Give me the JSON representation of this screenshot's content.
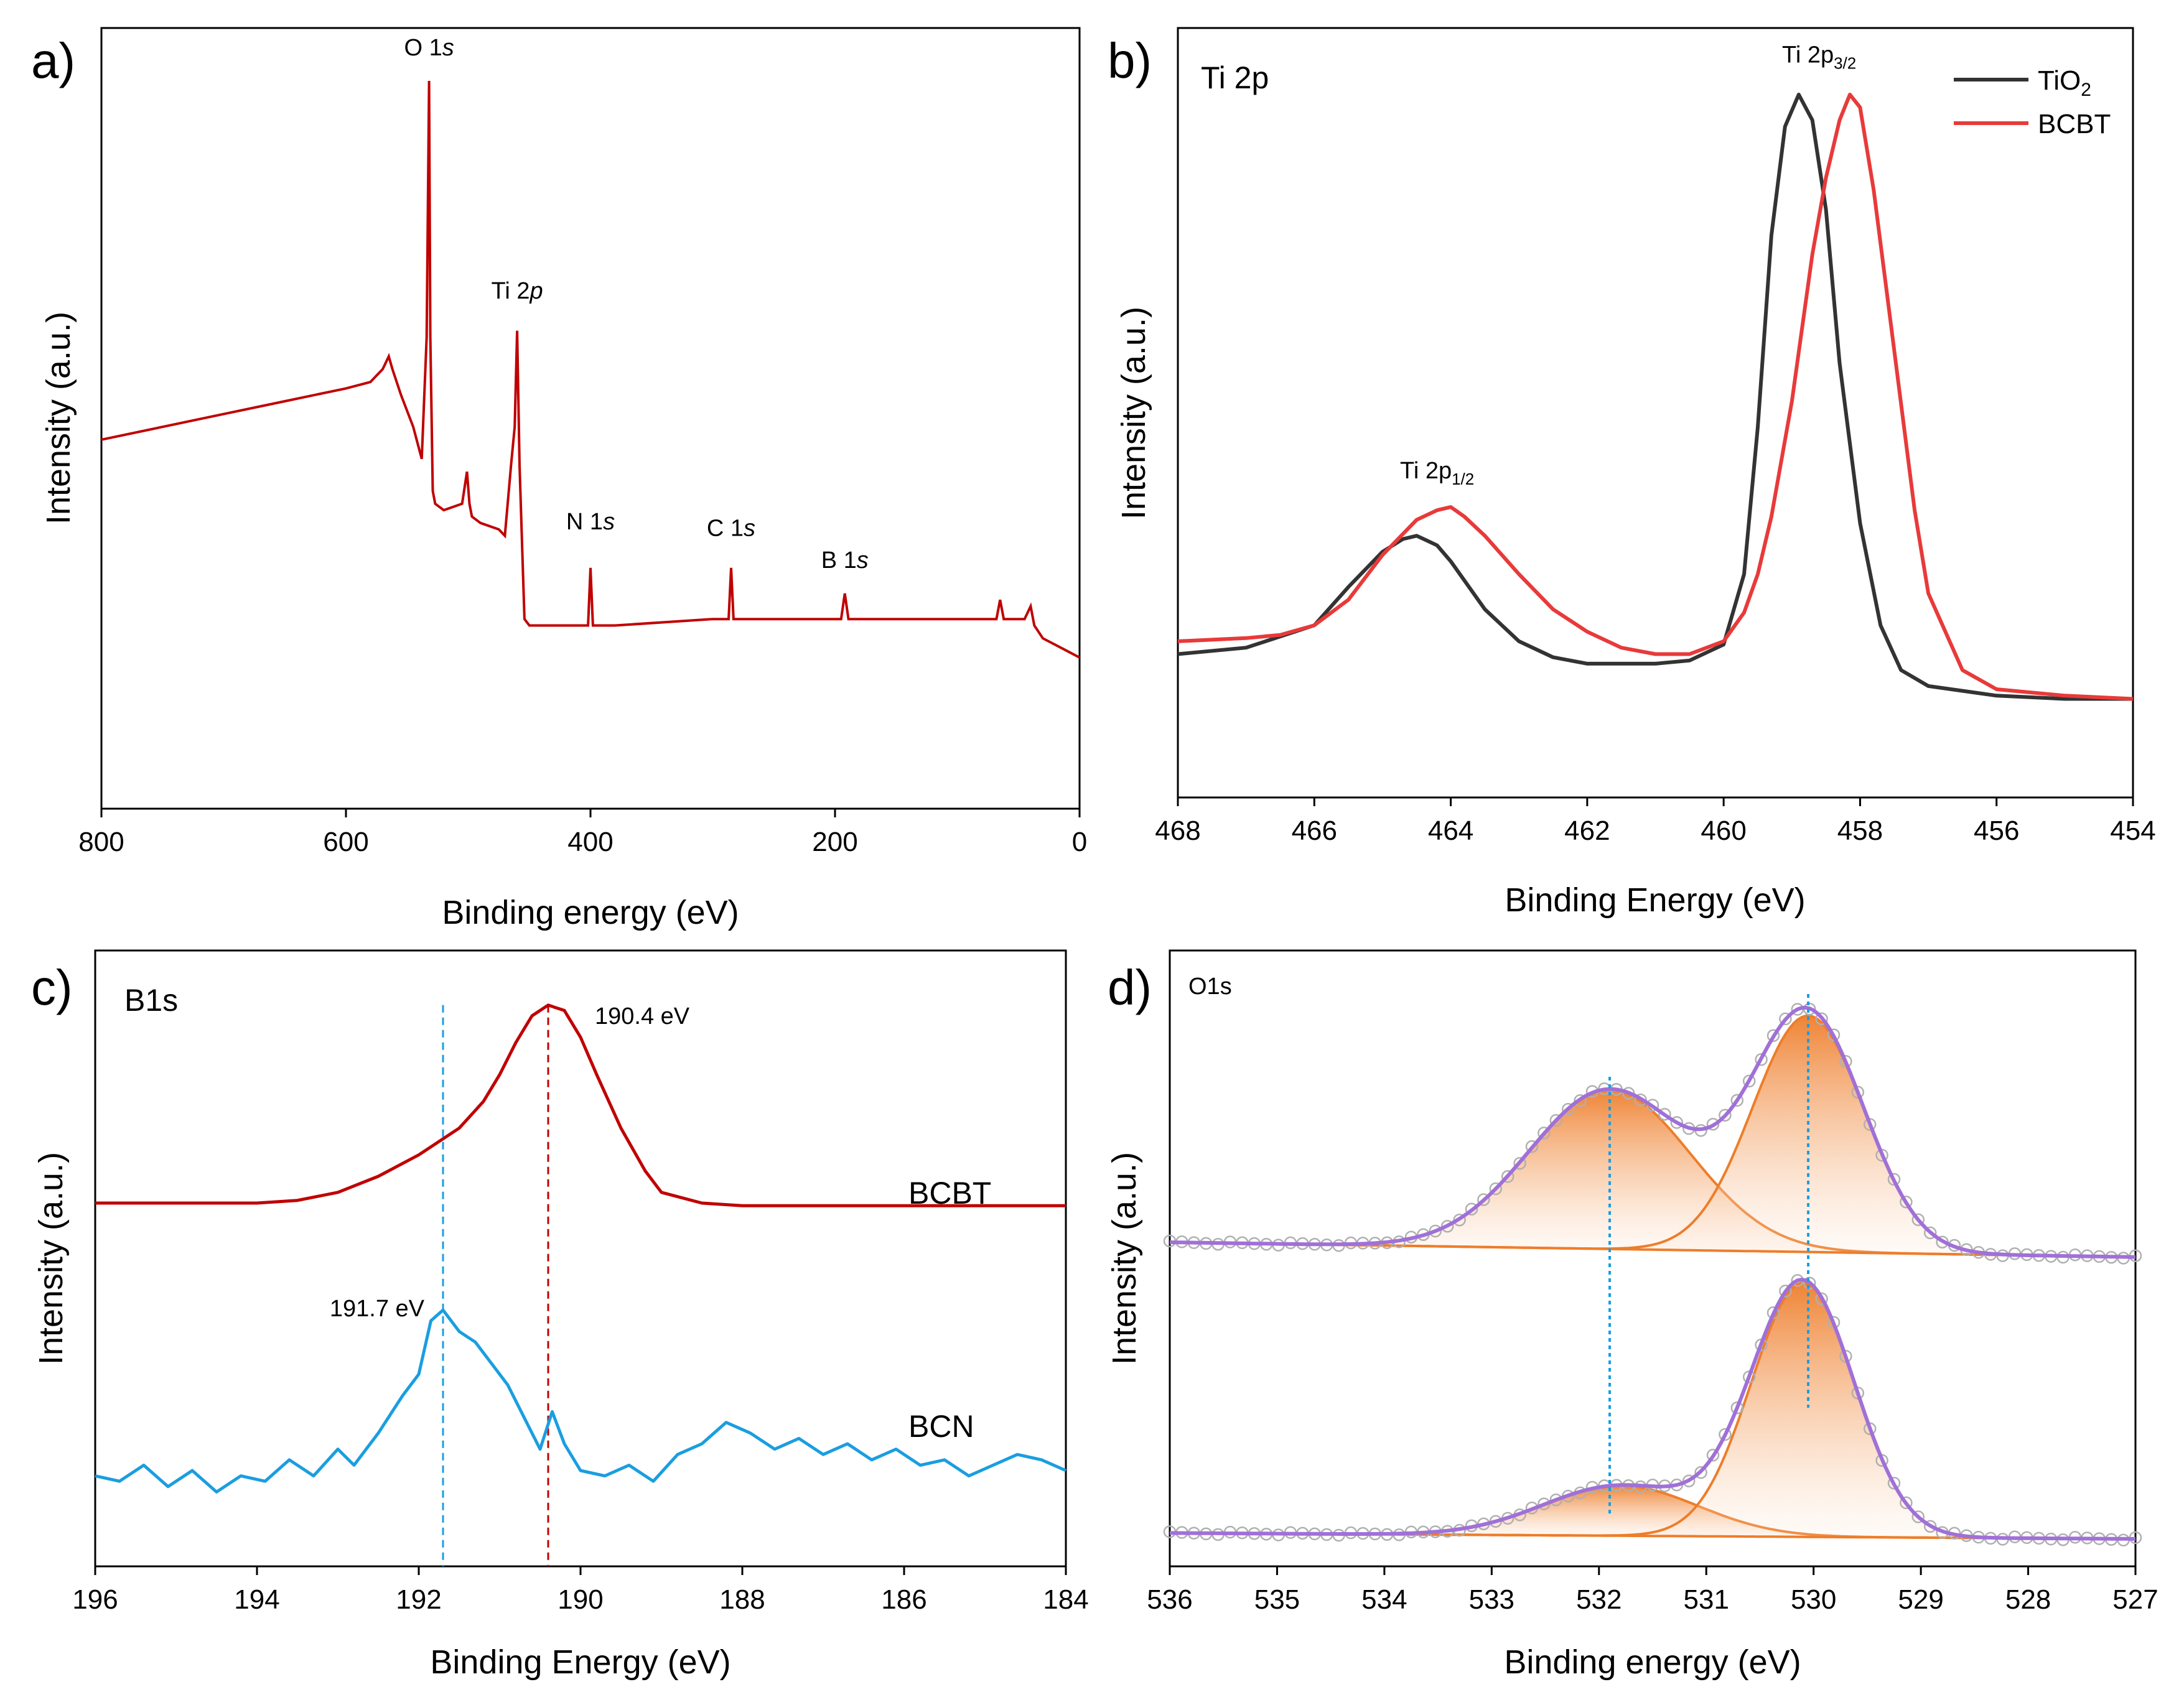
{
  "colors": {
    "tio2": "#333333",
    "bcbt": "#e83a3a",
    "survey": "#c00000",
    "b1s_bcbt": "#c00000",
    "b1s_bcn": "#1a9ee0",
    "o1s_envelope": "#a070d8",
    "o1s_component": "#ee7d2a",
    "o1s_points": "#b0b0b0",
    "guide_blue": "#1a9ee0"
  },
  "chart_data": [
    {
      "panel": "a)",
      "type": "line",
      "title": "",
      "xlabel": "Binding energy (eV)",
      "ylabel": "Intensity (a.u.)",
      "xlim": [
        800,
        0
      ],
      "ylim": [
        0,
        100
      ],
      "xticks": [
        "800",
        "600",
        "400",
        "200",
        "0"
      ],
      "series": [
        {
          "name": "survey",
          "x": [
            800,
            750,
            700,
            650,
            600,
            580,
            575,
            570,
            565,
            562,
            555,
            545,
            538,
            534,
            532,
            531,
            529,
            527,
            520,
            505,
            501,
            499,
            497,
            490,
            475,
            470,
            465,
            462,
            460,
            458,
            455,
            454,
            450,
            440,
            402,
            400,
            398,
            380,
            300,
            287,
            285,
            283,
            250,
            195,
            192,
            189,
            165,
            120,
            68,
            65,
            62,
            45,
            40,
            37,
            30,
            20,
            10,
            0
          ],
          "y": [
            44,
            46,
            48,
            50,
            52,
            53,
            54,
            55,
            57,
            55,
            51,
            46,
            41,
            60,
            100,
            60,
            36,
            34,
            33,
            34,
            39,
            34,
            32,
            31,
            30,
            29,
            40,
            46,
            61,
            40,
            22,
            16,
            15,
            15,
            15,
            24,
            15,
            15,
            16,
            16,
            24,
            16,
            16,
            16,
            20,
            16,
            16,
            16,
            16,
            19,
            16,
            16,
            18,
            15,
            13,
            12,
            11,
            10
          ]
        }
      ],
      "annotations": [
        {
          "text": "O 1",
          "italic": "s",
          "x": 532,
          "y": 104
        },
        {
          "text": "Ti 2",
          "italic": "p",
          "x": 460,
          "y": 66
        },
        {
          "text": "N 1",
          "italic": "s",
          "x": 400,
          "y": 30
        },
        {
          "text": "C 1",
          "italic": "s",
          "x": 285,
          "y": 29
        },
        {
          "text": "B 1",
          "italic": "s",
          "x": 192,
          "y": 24
        }
      ]
    },
    {
      "panel": "b)",
      "type": "line",
      "title": "Ti 2p",
      "xlabel": "Binding Energy (eV)",
      "ylabel": "Intensity (a.u.)",
      "xlim": [
        468,
        454
      ],
      "ylim": [
        0,
        100
      ],
      "xticks": [
        "468",
        "466",
        "464",
        "462",
        "460",
        "458",
        "456",
        "454"
      ],
      "legend": {
        "position": "top-right",
        "entries": [
          {
            "name": "TiO",
            "sub": "2",
            "color_key": "tio2"
          },
          {
            "name": "BCBT",
            "sub": "",
            "color_key": "bcbt"
          }
        ]
      },
      "series": [
        {
          "name": "TiO2",
          "x": [
            468,
            467,
            466,
            465.5,
            465,
            464.7,
            464.5,
            464.2,
            464,
            463.5,
            463,
            462.5,
            462,
            461.5,
            461,
            460.5,
            460,
            459.7,
            459.5,
            459.3,
            459.1,
            458.9,
            458.7,
            458.5,
            458.3,
            458,
            457.7,
            457.4,
            457,
            456,
            455,
            454
          ],
          "y": [
            12.5,
            13.5,
            17,
            23,
            28.5,
            30.5,
            31,
            29.5,
            27,
            19.5,
            14.5,
            12,
            11,
            11,
            11,
            11.5,
            14,
            25,
            48,
            78,
            95,
            100,
            96,
            82,
            58,
            33,
            17,
            10,
            7.5,
            6,
            5.5,
            5.5
          ]
        },
        {
          "name": "BCBT",
          "x": [
            468,
            467,
            466.5,
            466,
            465.5,
            465,
            464.5,
            464.2,
            464,
            463.8,
            463.5,
            463,
            462.5,
            462,
            461.5,
            461,
            460.5,
            460,
            459.7,
            459.5,
            459.3,
            459,
            458.7,
            458.5,
            458.3,
            458.15,
            458,
            457.8,
            457.5,
            457.2,
            457,
            456.5,
            456,
            455,
            454
          ],
          "y": [
            14.5,
            15,
            15.5,
            17,
            21,
            28,
            33.5,
            35,
            35.5,
            34,
            31,
            25,
            19.5,
            16,
            13.5,
            12.5,
            12.5,
            14.5,
            19,
            25,
            34,
            52,
            75,
            87,
            96,
            100,
            98,
            85,
            60,
            35,
            22,
            10,
            7,
            6,
            5.5
          ]
        }
      ],
      "annotations": [
        {
          "text": "Ti 2p",
          "sub": "3/2",
          "x": 458.6,
          "y": 105
        },
        {
          "text": "Ti 2p",
          "sub": "1/2",
          "x": 464.2,
          "y": 40
        }
      ]
    },
    {
      "panel": "c)",
      "type": "line",
      "title": "B1s",
      "xlabel": "Binding Energy (eV)",
      "ylabel": "Intensity (a.u.)",
      "xlim": [
        196,
        184
      ],
      "ylim": [
        0,
        100
      ],
      "xticks": [
        "196",
        "194",
        "192",
        "190",
        "188",
        "186",
        "184"
      ],
      "series_labels": [
        "BCBT",
        "BCN"
      ],
      "series": [
        {
          "name": "BCBT",
          "x": [
            196,
            195,
            194,
            193.5,
            193,
            192.5,
            192,
            191.5,
            191.2,
            191,
            190.8,
            190.6,
            190.4,
            190.2,
            190,
            189.8,
            189.5,
            189.2,
            189,
            188.5,
            188,
            187,
            186,
            185,
            184
          ],
          "y": [
            60,
            60,
            60,
            60.5,
            62,
            65,
            69,
            74,
            79,
            84,
            90,
            95,
            97,
            96,
            91,
            84,
            74,
            66,
            62,
            60,
            59.5,
            59.5,
            59.5,
            59.5,
            59.5
          ]
        },
        {
          "name": "BCN",
          "x": [
            196,
            195.7,
            195.4,
            195.1,
            194.8,
            194.5,
            194.2,
            193.9,
            193.6,
            193.3,
            193,
            192.8,
            192.5,
            192.2,
            192,
            191.85,
            191.7,
            191.5,
            191.3,
            191.1,
            190.9,
            190.7,
            190.5,
            190.35,
            190.2,
            190,
            189.7,
            189.4,
            189.1,
            188.8,
            188.5,
            188.2,
            187.9,
            187.6,
            187.3,
            187,
            186.7,
            186.4,
            186.1,
            185.8,
            185.5,
            185.2,
            184.9,
            184.6,
            184.3,
            184
          ],
          "y": [
            9,
            8,
            11,
            7,
            10,
            6,
            9,
            8,
            12,
            9,
            14,
            11,
            17,
            24,
            28,
            38,
            40,
            36,
            34,
            30,
            26,
            20,
            14,
            21,
            15,
            10,
            9,
            11,
            8,
            13,
            15,
            19,
            17,
            14,
            16,
            13,
            15,
            12,
            14,
            11,
            12,
            9,
            11,
            13,
            12,
            10
          ]
        }
      ],
      "annotations": [
        {
          "text": "190.4 eV",
          "x": 190.4,
          "y": 97
        },
        {
          "text": "191.7 eV",
          "x": 191.7,
          "y": 40
        }
      ],
      "guides": [
        {
          "x": 190.4,
          "color_key": "b1s_bcbt"
        },
        {
          "x": 191.7,
          "color_key": "b1s_bcn"
        }
      ]
    },
    {
      "panel": "d)",
      "type": "area",
      "title": "O1s",
      "xlabel": "Binding energy (eV)",
      "ylabel": "Intensity (a.u.)",
      "xlim": [
        536,
        527
      ],
      "ylim": [
        0,
        100
      ],
      "xticks": [
        "536",
        "535",
        "534",
        "533",
        "532",
        "531",
        "530",
        "529",
        "528",
        "527"
      ],
      "offset_series": [
        {
          "name": "top",
          "baseline_left": 54,
          "baseline_right": 51.5,
          "peaks": [
            {
              "center": 531.9,
              "height": 27,
              "width": 0.75
            },
            {
              "center": 530.05,
              "height": 40,
              "width": 0.52
            }
          ]
        },
        {
          "name": "bottom",
          "baseline_left": 4.8,
          "baseline_right": 3.8,
          "peaks": [
            {
              "center": 531.8,
              "height": 8.5,
              "width": 0.72
            },
            {
              "center": 530.1,
              "height": 43,
              "width": 0.48
            }
          ]
        }
      ],
      "guides": [
        {
          "x": 531.9
        },
        {
          "x": 530.05
        }
      ]
    }
  ]
}
